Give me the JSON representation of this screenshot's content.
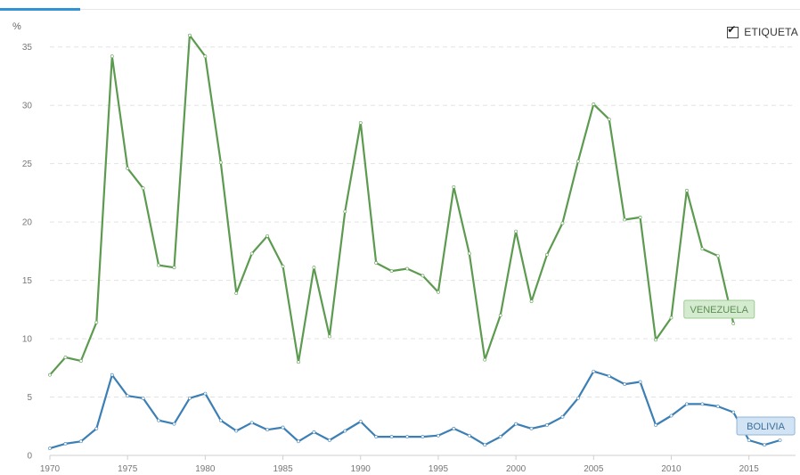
{
  "header": {
    "unit": "%"
  },
  "legend_toggle": {
    "label": "ETIQUETA",
    "checked": true
  },
  "chart_data": {
    "type": "line",
    "xlabel": "",
    "ylabel": "%",
    "xlim": [
      1970,
      2018
    ],
    "ylim": [
      0,
      37.5
    ],
    "yticks": [
      0,
      5,
      10,
      15,
      20,
      25,
      30,
      35
    ],
    "xticks": [
      1970,
      1975,
      1980,
      1985,
      1990,
      1995,
      2000,
      2005,
      2010,
      2015
    ],
    "grid": true,
    "series": [
      {
        "name": "VENEZUELA",
        "color": "#5c9b4f",
        "tag_bg": "#d4ebcf",
        "tag_border": "#9fcb95",
        "tag_text": "#5c8f53",
        "x": [
          1970,
          1971,
          1972,
          1973,
          1974,
          1975,
          1976,
          1977,
          1978,
          1979,
          1980,
          1981,
          1982,
          1983,
          1984,
          1985,
          1986,
          1987,
          1988,
          1989,
          1990,
          1991,
          1992,
          1993,
          1994,
          1995,
          1996,
          1997,
          1998,
          1999,
          2000,
          2001,
          2002,
          2003,
          2004,
          2005,
          2006,
          2007,
          2008,
          2009,
          2010,
          2011,
          2012,
          2013,
          2014
        ],
        "values": [
          6.9,
          8.4,
          8.1,
          11.4,
          34.2,
          24.6,
          22.9,
          16.3,
          16.1,
          36.0,
          34.2,
          25.1,
          13.9,
          17.3,
          18.8,
          16.2,
          8.0,
          16.1,
          10.2,
          20.9,
          28.5,
          16.5,
          15.8,
          16.0,
          15.4,
          14.0,
          23.0,
          17.3,
          8.2,
          12.0,
          19.2,
          13.2,
          17.2,
          19.9,
          25.2,
          30.1,
          28.8,
          20.2,
          20.4,
          9.9,
          11.8,
          22.7,
          17.7,
          17.1,
          11.3
        ]
      },
      {
        "name": "BOLIVIA",
        "color": "#3c7fb5",
        "tag_bg": "#d2e3f3",
        "tag_border": "#8fb5d9",
        "tag_text": "#3c6e99",
        "x": [
          1970,
          1971,
          1972,
          1973,
          1974,
          1975,
          1976,
          1977,
          1978,
          1979,
          1980,
          1981,
          1982,
          1983,
          1984,
          1985,
          1986,
          1987,
          1988,
          1989,
          1990,
          1991,
          1992,
          1993,
          1994,
          1995,
          1996,
          1997,
          1998,
          1999,
          2000,
          2001,
          2002,
          2003,
          2004,
          2005,
          2006,
          2007,
          2008,
          2009,
          2010,
          2011,
          2012,
          2013,
          2014,
          2015,
          2016,
          2017
        ],
        "values": [
          0.6,
          1.0,
          1.2,
          2.3,
          6.9,
          5.1,
          4.9,
          3.0,
          2.7,
          4.9,
          5.3,
          3.0,
          2.1,
          2.8,
          2.2,
          2.4,
          1.2,
          2.0,
          1.3,
          2.1,
          2.9,
          1.6,
          1.6,
          1.6,
          1.6,
          1.7,
          2.3,
          1.7,
          0.9,
          1.6,
          2.7,
          2.3,
          2.6,
          3.3,
          4.9,
          7.2,
          6.8,
          6.1,
          6.3,
          2.6,
          3.4,
          4.4,
          4.4,
          4.2,
          3.7,
          1.3,
          0.9,
          1.3
        ]
      }
    ]
  }
}
